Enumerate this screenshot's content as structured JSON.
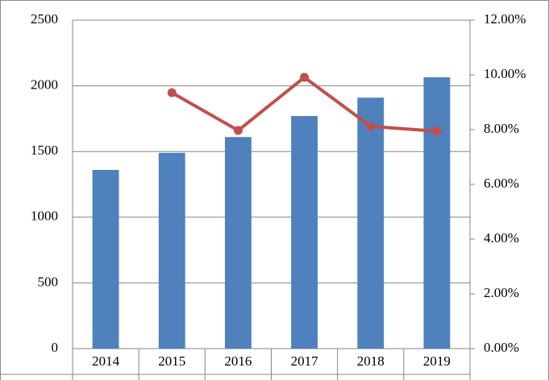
{
  "chart_data": {
    "type": "combo",
    "categories": [
      "2014",
      "2015",
      "2016",
      "2017",
      "2018",
      "2019"
    ],
    "series": [
      {
        "type": "bar",
        "color": "#4f81bd",
        "values": [
          1360,
          1490,
          1610,
          1770,
          1910,
          2065
        ]
      },
      {
        "type": "line",
        "color": "#c0504d",
        "axis": "y2",
        "values": [
          null,
          9.35,
          7.97,
          9.91,
          8.12,
          7.94
        ]
      }
    ],
    "ylim": [
      0,
      2500
    ],
    "yticks": [
      0,
      500,
      1000,
      1500,
      2000,
      2500
    ],
    "y2lim": [
      0,
      12
    ],
    "y2ticks": [
      {
        "value": 0,
        "label": "0.00%"
      },
      {
        "value": 2,
        "label": "2.00%"
      },
      {
        "value": 4,
        "label": "4.00%"
      },
      {
        "value": 6,
        "label": "6.00%"
      },
      {
        "value": 8,
        "label": "8.00%"
      },
      {
        "value": 10,
        "label": "10.00%"
      },
      {
        "value": 12,
        "label": "12.00%"
      }
    ],
    "grid": true
  }
}
